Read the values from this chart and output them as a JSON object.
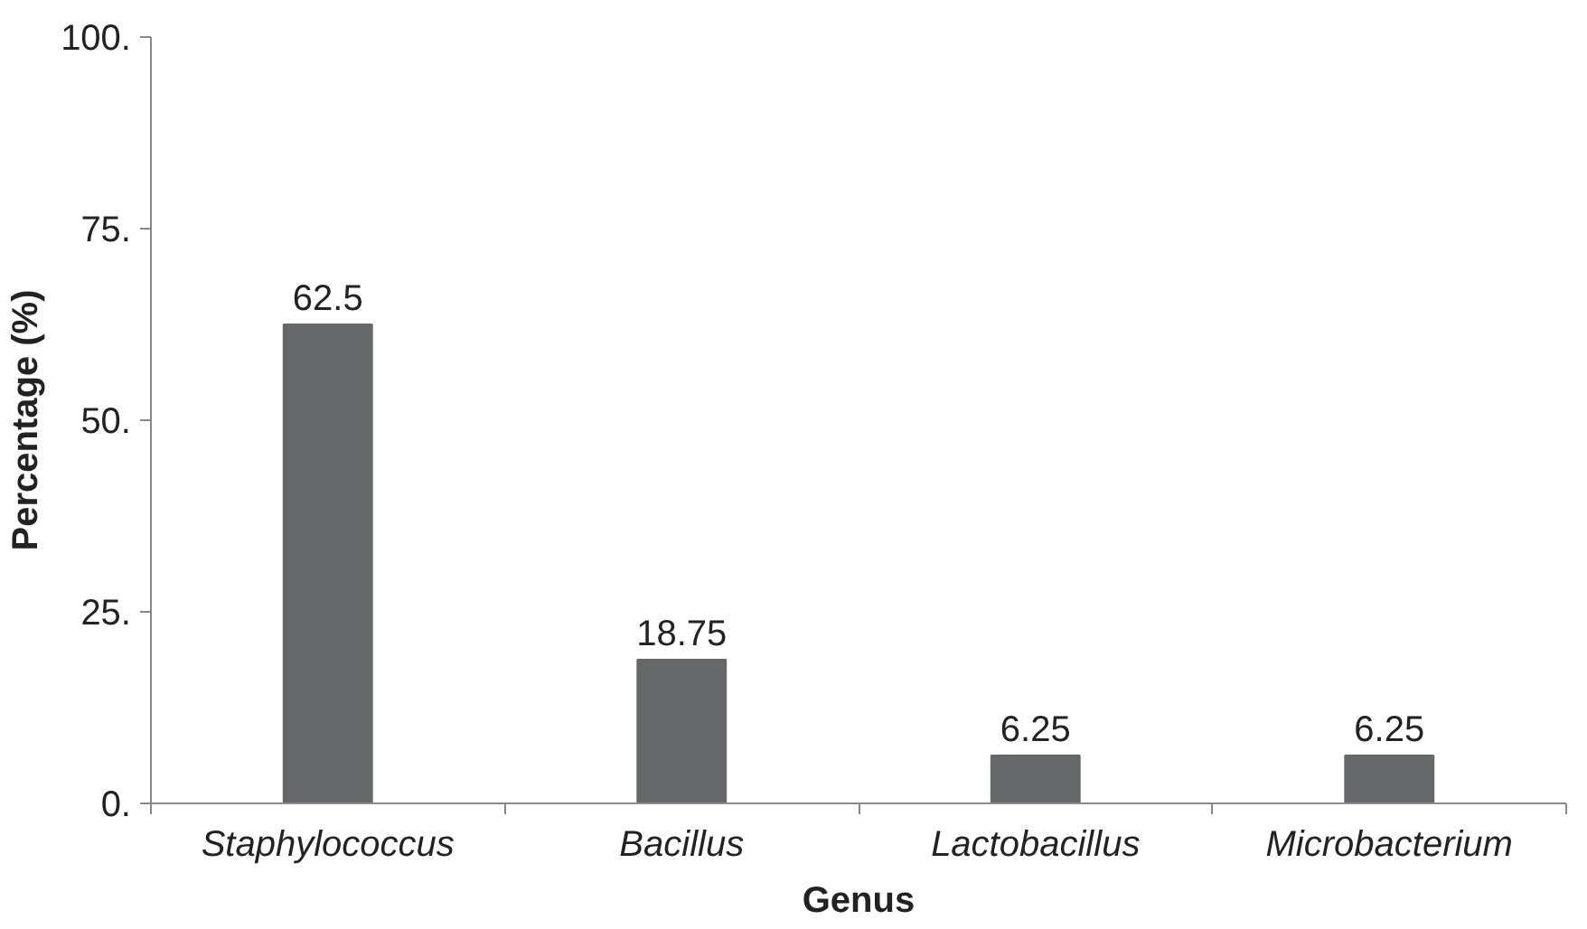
{
  "chart_data": {
    "type": "bar",
    "xlabel": "Genus",
    "ylabel": "Percentage (%)",
    "categories": [
      "Staphylococcus",
      "Bacillus",
      "Lactobacillus",
      "Microbacterium"
    ],
    "values": [
      62.5,
      18.75,
      6.25,
      6.25
    ],
    "color": "#646868",
    "ylim": [
      0,
      100
    ],
    "yticks": [
      {
        "value": 0,
        "label": "0."
      },
      {
        "value": 25,
        "label": "25."
      },
      {
        "value": 50,
        "label": "50."
      },
      {
        "value": 75,
        "label": "75."
      },
      {
        "value": 100,
        "label": "100."
      }
    ],
    "data_labels": true,
    "grid": false
  }
}
